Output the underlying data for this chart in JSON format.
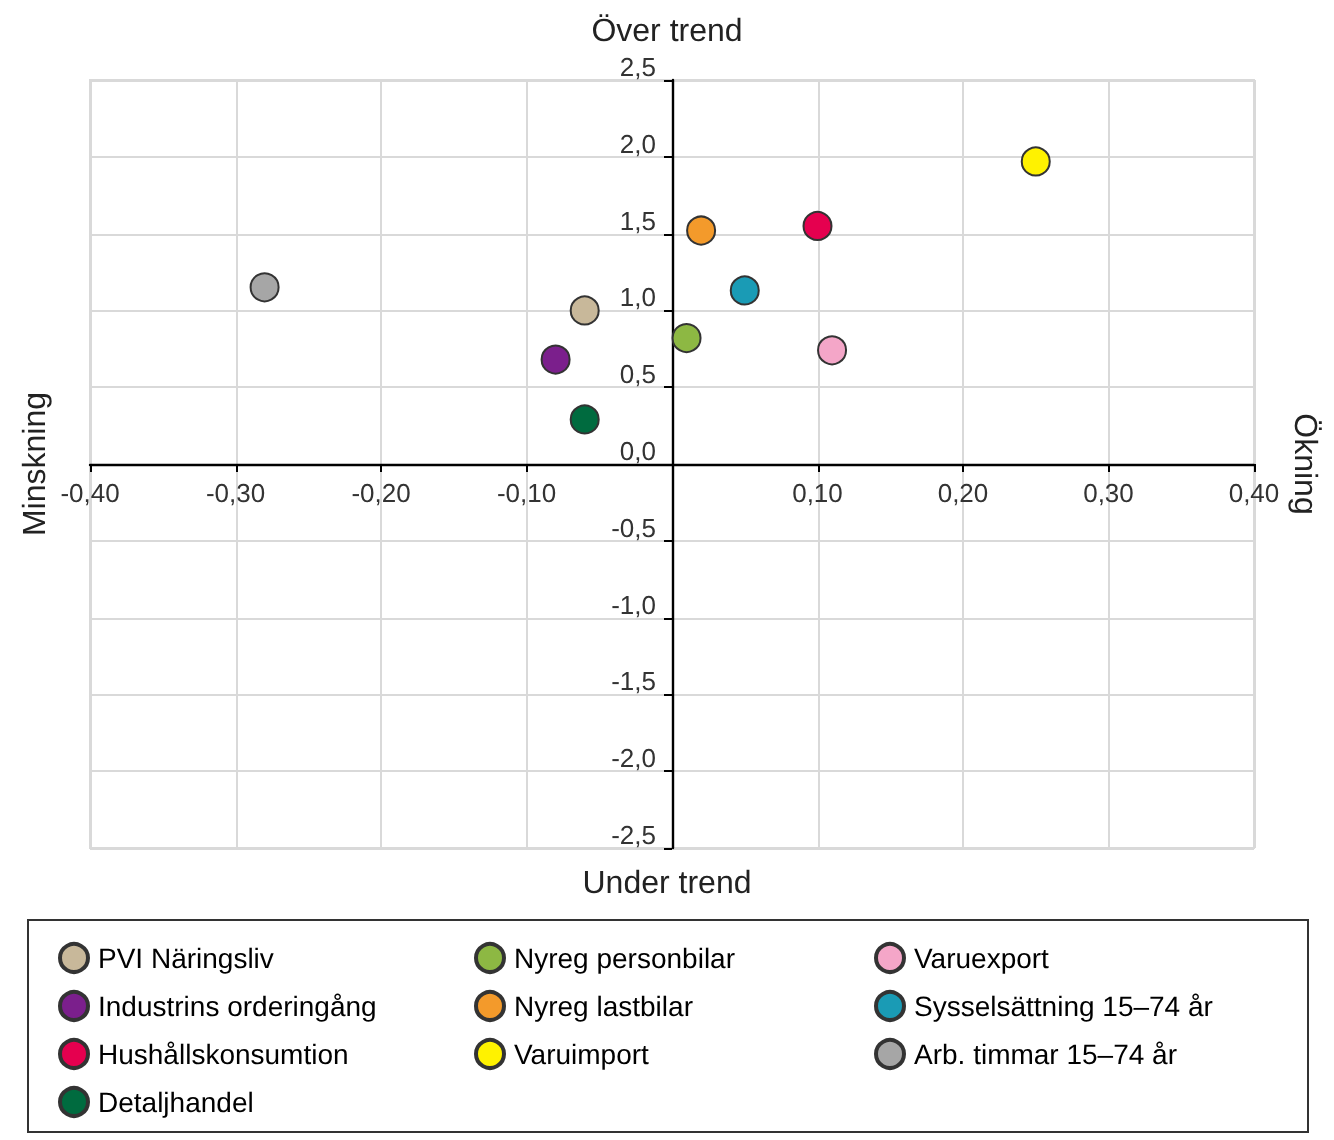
{
  "chart_data": {
    "type": "scatter",
    "x2label": "Över trend",
    "xlabel": "Under trend",
    "ylabel": "Minskning",
    "y2label": "Ökning",
    "xlim": [
      -0.4,
      0.4
    ],
    "ylim": [
      -2.5,
      2.5
    ],
    "xticks": [
      {
        "value": -0.4,
        "label": "-0,40"
      },
      {
        "value": -0.3,
        "label": "-0,30"
      },
      {
        "value": -0.2,
        "label": "-0,20"
      },
      {
        "value": -0.1,
        "label": "-0,10"
      },
      {
        "value": 0,
        "label": null
      },
      {
        "value": 0.1,
        "label": "0,10"
      },
      {
        "value": 0.2,
        "label": "0,20"
      },
      {
        "value": 0.3,
        "label": "0,30"
      },
      {
        "value": 0.4,
        "label": "0,40"
      }
    ],
    "yticks": [
      {
        "value": -2.5,
        "label": "-2,5"
      },
      {
        "value": -2,
        "label": "-2,0"
      },
      {
        "value": -1.5,
        "label": "-1,5"
      },
      {
        "value": -1,
        "label": "-1,0"
      },
      {
        "value": -0.5,
        "label": "-0,5"
      },
      {
        "value": 0,
        "label": "0,0"
      },
      {
        "value": 0.5,
        "label": "0,5"
      },
      {
        "value": 1,
        "label": "1,0"
      },
      {
        "value": 1.5,
        "label": "1,5"
      },
      {
        "value": 2,
        "label": "2,0"
      },
      {
        "value": 2.5,
        "label": "2,5"
      }
    ],
    "grid": true,
    "legend": "bottom",
    "marker": "circle",
    "series": [
      {
        "name": "PVI Näringsliv",
        "color": "#c8b89a",
        "x": [
          -0.06
        ],
        "values": [
          1.0
        ]
      },
      {
        "name": "Nyreg personbilar",
        "color": "#8db843",
        "x": [
          0.01
        ],
        "values": [
          0.82
        ]
      },
      {
        "name": "Varuexport",
        "color": "#f4a6c8",
        "x": [
          0.11
        ],
        "values": [
          0.74
        ]
      },
      {
        "name": "Industrins orderingång",
        "color": "#7b1f8c",
        "x": [
          -0.08
        ],
        "values": [
          0.68
        ]
      },
      {
        "name": "Nyreg lastbilar",
        "color": "#f39a2b",
        "x": [
          0.02
        ],
        "values": [
          1.52
        ]
      },
      {
        "name": "Sysselsättning 15–74 år",
        "color": "#1a9bb5",
        "x": [
          0.05
        ],
        "values": [
          1.13
        ]
      },
      {
        "name": "Hushållskonsumtion",
        "color": "#e5004f",
        "x": [
          0.1
        ],
        "values": [
          1.55
        ]
      },
      {
        "name": "Varuimport",
        "color": "#fff200",
        "x": [
          0.25
        ],
        "values": [
          1.97
        ]
      },
      {
        "name": "Arb. timmar 15–74 år",
        "color": "#a6a6a6",
        "x": [
          -0.28
        ],
        "values": [
          1.15
        ]
      },
      {
        "name": "Detaljhandel",
        "color": "#006b3f",
        "x": [
          -0.06
        ],
        "values": [
          0.29
        ]
      }
    ]
  }
}
